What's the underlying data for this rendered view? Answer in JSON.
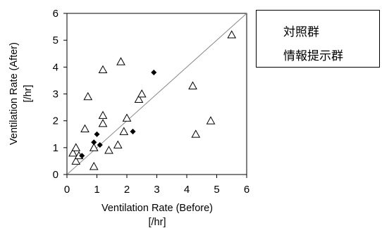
{
  "chart_data": {
    "type": "scatter",
    "xlabel_lines": [
      "Ventilation Rate (Before)",
      "[/hr]"
    ],
    "ylabel_lines": [
      "Ventilation Rate (After)",
      "[/hr]"
    ],
    "xlim": [
      0,
      6
    ],
    "ylim": [
      0,
      6
    ],
    "x_ticks": [
      "0",
      "1",
      "2",
      "3",
      "4",
      "5",
      "6"
    ],
    "y_ticks": [
      "0",
      "1",
      "2",
      "3",
      "4",
      "5",
      "6"
    ],
    "reference_line": "y = x",
    "grid": false,
    "legend_position": "top-right outside",
    "series": [
      {
        "name": "対照群",
        "marker": "open-triangle",
        "color": "#000000",
        "points": [
          [
            0.2,
            0.8
          ],
          [
            0.3,
            1.0
          ],
          [
            0.3,
            0.5
          ],
          [
            0.4,
            0.7
          ],
          [
            0.6,
            1.7
          ],
          [
            0.7,
            2.9
          ],
          [
            0.9,
            0.3
          ],
          [
            0.9,
            1.0
          ],
          [
            1.2,
            3.9
          ],
          [
            1.2,
            2.2
          ],
          [
            1.2,
            1.9
          ],
          [
            1.4,
            0.9
          ],
          [
            1.7,
            1.1
          ],
          [
            1.8,
            4.2
          ],
          [
            1.9,
            1.6
          ],
          [
            2.0,
            2.1
          ],
          [
            2.4,
            2.8
          ],
          [
            2.5,
            3.0
          ],
          [
            4.2,
            3.3
          ],
          [
            4.3,
            1.5
          ],
          [
            4.8,
            2.0
          ],
          [
            5.5,
            5.2
          ]
        ]
      },
      {
        "name": "情報提示群",
        "marker": "filled-diamond",
        "color": "#000000",
        "points": [
          [
            0.5,
            0.7
          ],
          [
            0.9,
            1.2
          ],
          [
            1.0,
            1.5
          ],
          [
            1.1,
            1.1
          ],
          [
            2.2,
            1.6
          ],
          [
            2.9,
            3.8
          ]
        ]
      }
    ]
  }
}
